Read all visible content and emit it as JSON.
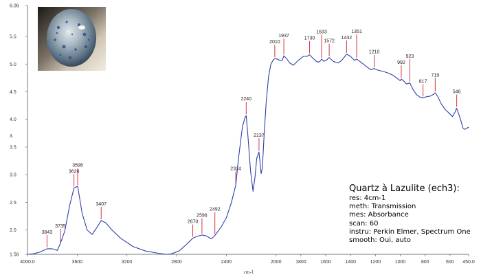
{
  "chart_data": {
    "type": "line",
    "title": "",
    "xlabel": "cm-1",
    "ylabel": "A",
    "xlim": [
      4000.0,
      450.0
    ],
    "ylim": [
      1.56,
      6.06
    ],
    "x_ticks": [
      {
        "value": 4000,
        "label": "4000.0"
      },
      {
        "value": 3600,
        "label": "3600"
      },
      {
        "value": 3200,
        "label": "3200"
      },
      {
        "value": 2800,
        "label": "2800"
      },
      {
        "value": 2400,
        "label": "2400"
      },
      {
        "value": 2000,
        "label": "2000"
      },
      {
        "value": 1800,
        "label": "1800"
      },
      {
        "value": 1600,
        "label": "1600"
      },
      {
        "value": 1400,
        "label": "1400"
      },
      {
        "value": 1200,
        "label": "1200"
      },
      {
        "value": 1000,
        "label": "1000"
      },
      {
        "value": 800,
        "label": "800"
      },
      {
        "value": 600,
        "label": "600"
      },
      {
        "value": 450,
        "label": "450.0"
      }
    ],
    "y_ticks": [
      {
        "value": 6.06,
        "label": "6.06"
      },
      {
        "value": 5.5,
        "label": "5.5"
      },
      {
        "value": 5.0,
        "label": "5.0"
      },
      {
        "value": 4.5,
        "label": "4.5"
      },
      {
        "value": 4.0,
        "label": "4.0"
      },
      {
        "value": 3.5,
        "label": "3.5"
      },
      {
        "value": 3.0,
        "label": "3.0"
      },
      {
        "value": 2.5,
        "label": "2.5"
      },
      {
        "value": 2.0,
        "label": "2.0"
      },
      {
        "value": 1.56,
        "label": "1.56"
      }
    ],
    "series": [
      {
        "color": "#2f3fa8",
        "points": [
          [
            4000,
            1.56
          ],
          [
            3950,
            1.57
          ],
          [
            3900,
            1.6
          ],
          [
            3843,
            1.66
          ],
          [
            3800,
            1.66
          ],
          [
            3760,
            1.63
          ],
          [
            3735,
            1.76
          ],
          [
            3700,
            1.98
          ],
          [
            3660,
            2.45
          ],
          [
            3626,
            2.76
          ],
          [
            3596,
            2.79
          ],
          [
            3560,
            2.3
          ],
          [
            3520,
            2.0
          ],
          [
            3480,
            1.92
          ],
          [
            3440,
            2.05
          ],
          [
            3407,
            2.17
          ],
          [
            3370,
            2.13
          ],
          [
            3320,
            2.0
          ],
          [
            3250,
            1.85
          ],
          [
            3150,
            1.7
          ],
          [
            3050,
            1.62
          ],
          [
            2950,
            1.58
          ],
          [
            2880,
            1.56
          ],
          [
            2840,
            1.57
          ],
          [
            2780,
            1.62
          ],
          [
            2720,
            1.74
          ],
          [
            2670,
            1.85
          ],
          [
            2640,
            1.88
          ],
          [
            2596,
            1.91
          ],
          [
            2560,
            1.89
          ],
          [
            2520,
            1.84
          ],
          [
            2492,
            1.9
          ],
          [
            2440,
            2.06
          ],
          [
            2400,
            2.22
          ],
          [
            2360,
            2.49
          ],
          [
            2324,
            2.81
          ],
          [
            2300,
            3.33
          ],
          [
            2270,
            3.87
          ],
          [
            2250,
            4.03
          ],
          [
            2240,
            4.07
          ],
          [
            2225,
            3.67
          ],
          [
            2205,
            3.07
          ],
          [
            2185,
            2.7
          ],
          [
            2170,
            2.94
          ],
          [
            2155,
            3.3
          ],
          [
            2137,
            3.41
          ],
          [
            2120,
            3.02
          ],
          [
            2110,
            3.12
          ],
          [
            2095,
            3.75
          ],
          [
            2080,
            4.28
          ],
          [
            2060,
            4.78
          ],
          [
            2040,
            5.01
          ],
          [
            2020,
            5.08
          ],
          [
            2010,
            5.1
          ],
          [
            1990,
            5.09
          ],
          [
            1970,
            5.07
          ],
          [
            1950,
            5.07
          ],
          [
            1937,
            5.15
          ],
          [
            1915,
            5.1
          ],
          [
            1890,
            5.02
          ],
          [
            1860,
            4.98
          ],
          [
            1820,
            5.07
          ],
          [
            1780,
            5.14
          ],
          [
            1750,
            5.14
          ],
          [
            1730,
            5.17
          ],
          [
            1700,
            5.1
          ],
          [
            1670,
            5.04
          ],
          [
            1650,
            5.04
          ],
          [
            1633,
            5.09
          ],
          [
            1615,
            5.05
          ],
          [
            1590,
            5.08
          ],
          [
            1572,
            5.12
          ],
          [
            1540,
            5.05
          ],
          [
            1500,
            5.02
          ],
          [
            1470,
            5.07
          ],
          [
            1432,
            5.18
          ],
          [
            1400,
            5.14
          ],
          [
            1370,
            5.07
          ],
          [
            1351,
            5.09
          ],
          [
            1320,
            5.04
          ],
          [
            1280,
            4.97
          ],
          [
            1240,
            4.9
          ],
          [
            1210,
            4.92
          ],
          [
            1180,
            4.89
          ],
          [
            1140,
            4.87
          ],
          [
            1100,
            4.84
          ],
          [
            1060,
            4.8
          ],
          [
            1030,
            4.75
          ],
          [
            1000,
            4.7
          ],
          [
            992,
            4.73
          ],
          [
            970,
            4.69
          ],
          [
            950,
            4.64
          ],
          [
            923,
            4.66
          ],
          [
            900,
            4.55
          ],
          [
            870,
            4.45
          ],
          [
            840,
            4.4
          ],
          [
            817,
            4.39
          ],
          [
            790,
            4.41
          ],
          [
            760,
            4.42
          ],
          [
            735,
            4.45
          ],
          [
            719,
            4.48
          ],
          [
            700,
            4.42
          ],
          [
            670,
            4.28
          ],
          [
            640,
            4.18
          ],
          [
            610,
            4.12
          ],
          [
            580,
            4.05
          ],
          [
            560,
            4.13
          ],
          [
            546,
            4.2
          ],
          [
            530,
            4.1
          ],
          [
            510,
            3.96
          ],
          [
            495,
            3.84
          ],
          [
            480,
            3.82
          ],
          [
            465,
            3.84
          ],
          [
            450,
            3.86
          ]
        ]
      }
    ],
    "peaks": [
      {
        "x": 3843,
        "y": 1.66,
        "label": "3843"
      },
      {
        "x": 3735,
        "y": 1.76,
        "label": "3735"
      },
      {
        "x": 3626,
        "y": 2.76,
        "label": "3626"
      },
      {
        "x": 3596,
        "y": 2.79,
        "label": "3596"
      },
      {
        "x": 3407,
        "y": 2.17,
        "label": "3407"
      },
      {
        "x": 2670,
        "y": 1.85,
        "label": "2670"
      },
      {
        "x": 2596,
        "y": 1.91,
        "label": "2596"
      },
      {
        "x": 2492,
        "y": 1.9,
        "label": "2492"
      },
      {
        "x": 2324,
        "y": 2.81,
        "label": "2324"
      },
      {
        "x": 2240,
        "y": 4.07,
        "label": "2240"
      },
      {
        "x": 2137,
        "y": 3.41,
        "label": "2137"
      },
      {
        "x": 2010,
        "y": 5.1,
        "label": "2010"
      },
      {
        "x": 1937,
        "y": 5.15,
        "label": "1937"
      },
      {
        "x": 1730,
        "y": 5.17,
        "label": "1730"
      },
      {
        "x": 1633,
        "y": 5.09,
        "label": "1633"
      },
      {
        "x": 1572,
        "y": 5.12,
        "label": "1572"
      },
      {
        "x": 1432,
        "y": 5.18,
        "label": "1432"
      },
      {
        "x": 1351,
        "y": 5.09,
        "label": "1351"
      },
      {
        "x": 1210,
        "y": 4.92,
        "label": "1210"
      },
      {
        "x": 992,
        "y": 4.73,
        "label": "992"
      },
      {
        "x": 923,
        "y": 4.66,
        "label": "923"
      },
      {
        "x": 817,
        "y": 4.39,
        "label": "817"
      },
      {
        "x": 719,
        "y": 4.48,
        "label": "719"
      },
      {
        "x": 546,
        "y": 4.2,
        "label": "546"
      }
    ],
    "grid": false,
    "legend": "none"
  },
  "info": {
    "title": "Quartz à Lazulite (ech3):",
    "lines": [
      "res: 4cm-1",
      "meth: Transmission",
      "mes: Absorbance",
      "scan: 60",
      "instru: Perkin Elmer, Spectrum One",
      "smooth: Oui, auto"
    ]
  },
  "colors": {
    "spectrum": "#2f3fa8",
    "peak_marker": "#d9323a",
    "axis": "#777777"
  },
  "photo": {
    "subject": "lazulite-quartz-cabochon"
  }
}
